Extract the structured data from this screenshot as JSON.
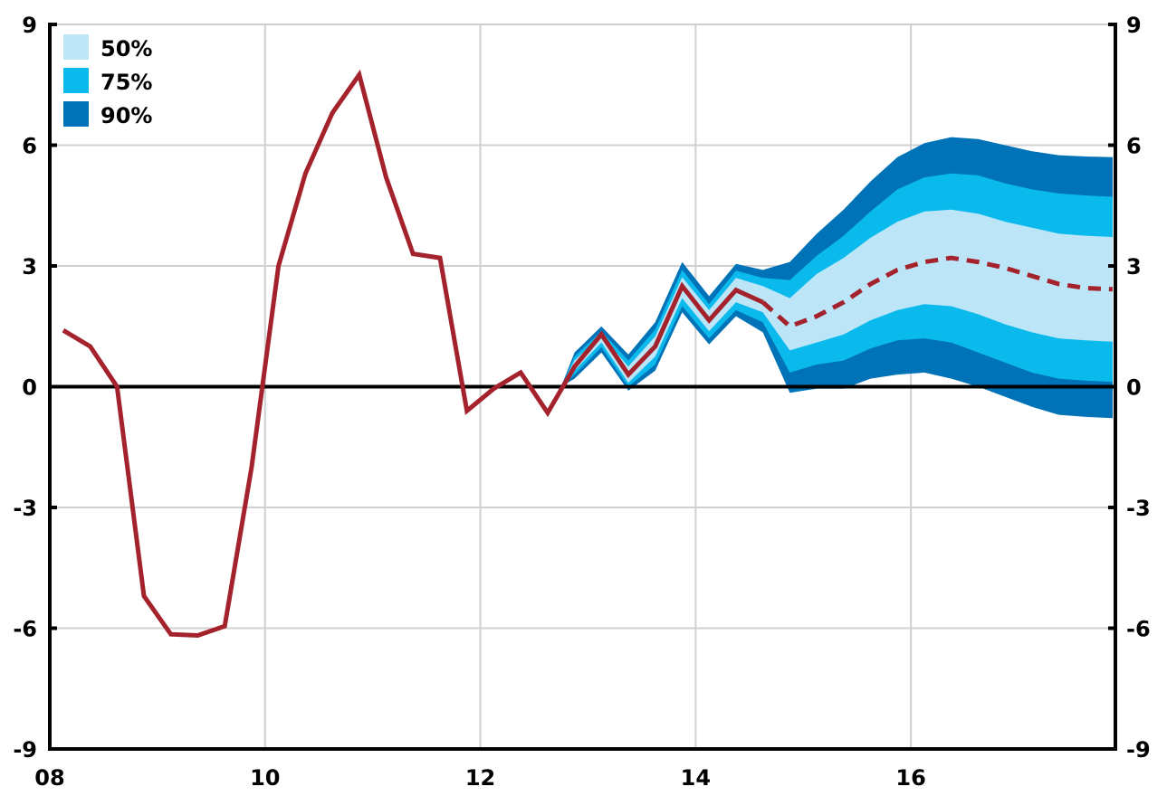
{
  "chart_data": {
    "type": "area",
    "title": "",
    "xlabel": "",
    "ylabel": "",
    "xlim": [
      2008.0,
      2017.9
    ],
    "ylim": [
      -9,
      9
    ],
    "x_ticks": [
      {
        "value": 2008,
        "label": "08"
      },
      {
        "value": 2010,
        "label": "10"
      },
      {
        "value": 2012,
        "label": "12"
      },
      {
        "value": 2014,
        "label": "14"
      },
      {
        "value": 2016,
        "label": "16"
      }
    ],
    "y_ticks": [
      9,
      6,
      3,
      0,
      -3,
      -6,
      -9
    ],
    "y_tick_labels": [
      "9",
      "6",
      "3",
      "0",
      "-3",
      "-6",
      "-9"
    ],
    "grid": true,
    "legend_position": "top-left",
    "legend": [
      {
        "label": "50%",
        "color": "#bde5f8"
      },
      {
        "label": "75%",
        "color": "#0bbaec"
      },
      {
        "label": "90%",
        "color": "#0073b8"
      }
    ],
    "colors": {
      "line": "#a3222b",
      "band50": "#bde5f8",
      "band75": "#0bbaec",
      "band90": "#0073b8",
      "grid": "#d0d0d0",
      "axis": "#000000"
    },
    "series": [
      {
        "kind": "actual",
        "points": [
          [
            2008.125,
            1.4
          ],
          [
            2008.375,
            1.0
          ],
          [
            2008.625,
            0.0
          ],
          [
            2008.875,
            -5.2
          ],
          [
            2009.125,
            -6.15
          ],
          [
            2009.375,
            -6.18
          ],
          [
            2009.625,
            -5.95
          ],
          [
            2009.875,
            -2.0
          ],
          [
            2010.125,
            3.0
          ],
          [
            2010.375,
            5.3
          ],
          [
            2010.625,
            6.8
          ],
          [
            2010.875,
            7.75
          ],
          [
            2011.125,
            5.2
          ],
          [
            2011.375,
            3.3
          ],
          [
            2011.625,
            3.2
          ],
          [
            2011.875,
            -0.6
          ],
          [
            2012.125,
            -0.05
          ],
          [
            2012.375,
            0.35
          ],
          [
            2012.625,
            -0.65
          ],
          [
            2012.875,
            0.5
          ],
          [
            2013.125,
            1.3
          ],
          [
            2013.375,
            0.3
          ],
          [
            2013.625,
            1.0
          ],
          [
            2013.875,
            2.5
          ],
          [
            2014.125,
            1.65
          ],
          [
            2014.375,
            2.4
          ],
          [
            2014.625,
            2.1
          ]
        ]
      },
      {
        "kind": "projection",
        "points": [
          [
            2014.625,
            2.1
          ],
          [
            2014.875,
            1.5
          ],
          [
            2015.125,
            1.75
          ],
          [
            2015.375,
            2.1
          ],
          [
            2015.625,
            2.55
          ],
          [
            2015.875,
            2.9
          ],
          [
            2016.125,
            3.1
          ],
          [
            2016.375,
            3.2
          ],
          [
            2016.625,
            3.1
          ],
          [
            2016.875,
            2.95
          ],
          [
            2017.125,
            2.75
          ],
          [
            2017.375,
            2.55
          ],
          [
            2017.625,
            2.45
          ],
          [
            2017.875,
            2.42
          ]
        ]
      }
    ],
    "bands": {
      "x": [
        2012.75,
        2012.875,
        2013.125,
        2013.375,
        2013.625,
        2013.875,
        2014.125,
        2014.375,
        2014.625,
        2014.875,
        2015.125,
        2015.375,
        2015.625,
        2015.875,
        2016.125,
        2016.375,
        2016.625,
        2016.875,
        2017.125,
        2017.375,
        2017.625,
        2017.875
      ],
      "p90_upper": [
        0.0,
        0.85,
        1.5,
        0.8,
        1.6,
        3.1,
        2.25,
        3.05,
        2.9,
        3.1,
        3.8,
        4.4,
        5.1,
        5.7,
        6.05,
        6.2,
        6.15,
        6.0,
        5.85,
        5.75,
        5.72,
        5.7
      ],
      "p75_upper": [
        0.0,
        0.75,
        1.38,
        0.65,
        1.42,
        2.9,
        2.05,
        2.88,
        2.7,
        2.65,
        3.25,
        3.75,
        4.35,
        4.9,
        5.2,
        5.3,
        5.25,
        5.05,
        4.9,
        4.8,
        4.75,
        4.72
      ],
      "p50_upper": [
        0.0,
        0.65,
        1.28,
        0.5,
        1.25,
        2.72,
        1.9,
        2.7,
        2.5,
        2.2,
        2.8,
        3.2,
        3.7,
        4.1,
        4.35,
        4.4,
        4.3,
        4.1,
        3.95,
        3.8,
        3.75,
        3.72
      ],
      "p50_lower": [
        0.0,
        0.4,
        1.1,
        0.1,
        0.75,
        2.2,
        1.38,
        2.1,
        1.85,
        0.9,
        1.1,
        1.3,
        1.65,
        1.9,
        2.05,
        2.0,
        1.8,
        1.55,
        1.35,
        1.2,
        1.15,
        1.12
      ],
      "p75_lower": [
        0.0,
        0.3,
        0.98,
        0.0,
        0.55,
        2.0,
        1.2,
        1.9,
        1.6,
        0.35,
        0.55,
        0.65,
        0.95,
        1.15,
        1.2,
        1.1,
        0.85,
        0.6,
        0.35,
        0.2,
        0.15,
        0.12
      ],
      "p90_lower": [
        0.0,
        0.2,
        0.85,
        -0.1,
        0.4,
        1.85,
        1.05,
        1.75,
        1.35,
        -0.15,
        -0.05,
        -0.05,
        0.2,
        0.3,
        0.35,
        0.2,
        0.0,
        -0.25,
        -0.5,
        -0.7,
        -0.75,
        -0.78
      ]
    }
  }
}
